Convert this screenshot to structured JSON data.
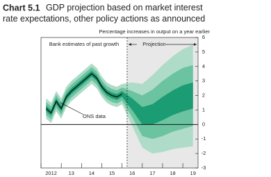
{
  "chart_data": {
    "type": "fan",
    "title_label": "Chart 5.1",
    "title": "GDP projection based on market interest rate expectations, other policy actions as announced",
    "subtitle": "Percentage increases in output on a year earlier",
    "past_label": "Bank estimates of past growth",
    "projection_label": "Projection",
    "projection_start": 2016.25,
    "xlim": [
      2012,
      2019.75
    ],
    "xticks": [
      {
        "value": 2012,
        "label": "2012"
      },
      {
        "value": 2013,
        "label": "13"
      },
      {
        "value": 2014,
        "label": "14"
      },
      {
        "value": 2015,
        "label": "15"
      },
      {
        "value": 2016,
        "label": "16"
      },
      {
        "value": 2017,
        "label": "17"
      },
      {
        "value": 2018,
        "label": "18"
      },
      {
        "value": 2019,
        "label": "19"
      }
    ],
    "ylim": [
      -3,
      6
    ],
    "yticks": [
      -3,
      -2,
      -1,
      0,
      1,
      2,
      3,
      4,
      5,
      6
    ],
    "band_x": [
      2012.25,
      2012.5,
      2012.75,
      2013,
      2013.25,
      2013.5,
      2013.75,
      2014,
      2014.25,
      2014.5,
      2014.75,
      2015,
      2015.25,
      2015.5,
      2015.75,
      2016,
      2016.5,
      2017,
      2017.5,
      2018,
      2018.5,
      2019,
      2019.5
    ],
    "bands": [
      {
        "color": "#aedcc8",
        "lower": [
          0.4,
          0.1,
          0.9,
          0.4,
          1.2,
          1.6,
          1.9,
          2.2,
          2.5,
          2.8,
          2.5,
          1.9,
          1.5,
          1.3,
          1.2,
          1.4,
          -0.1,
          -1.6,
          -2.0,
          -1.9,
          -1.7,
          -1.6,
          -1.5
        ],
        "upper": [
          1.8,
          1.5,
          2.3,
          1.8,
          2.6,
          3.0,
          3.3,
          3.6,
          3.9,
          4.2,
          3.9,
          3.3,
          2.9,
          2.7,
          2.6,
          2.8,
          2.9,
          2.8,
          3.4,
          4.1,
          4.7,
          5.2,
          5.5
        ]
      },
      {
        "color": "#6cc3a0",
        "lower": [
          0.65,
          0.35,
          1.15,
          0.65,
          1.45,
          1.85,
          2.15,
          2.45,
          2.75,
          3.05,
          2.75,
          2.15,
          1.75,
          1.55,
          1.45,
          1.65,
          0.5,
          -0.8,
          -1.0,
          -0.8,
          -0.5,
          -0.3,
          -0.1
        ],
        "upper": [
          1.55,
          1.25,
          2.05,
          1.55,
          2.35,
          2.75,
          3.05,
          3.35,
          3.65,
          3.95,
          3.65,
          3.05,
          2.65,
          2.45,
          2.35,
          2.55,
          2.3,
          2.0,
          2.4,
          3.0,
          3.5,
          3.9,
          4.1
        ]
      },
      {
        "color": "#1c9c73",
        "lower": [
          0.9,
          0.6,
          1.4,
          0.9,
          1.7,
          2.1,
          2.4,
          2.7,
          3.0,
          3.3,
          3.0,
          2.4,
          2.0,
          1.8,
          1.7,
          1.9,
          1.0,
          0.0,
          0.0,
          0.3,
          0.65,
          0.9,
          1.1
        ],
        "upper": [
          1.3,
          1.0,
          1.8,
          1.3,
          2.1,
          2.5,
          2.8,
          3.1,
          3.4,
          3.7,
          3.4,
          2.8,
          2.4,
          2.2,
          2.1,
          2.3,
          1.8,
          1.2,
          1.4,
          1.9,
          2.35,
          2.7,
          2.9
        ]
      }
    ],
    "series": [
      {
        "name": "ONS data",
        "color": "#111111",
        "x": [
          2012.25,
          2012.5,
          2012.75,
          2013,
          2013.25,
          2013.5,
          2013.75,
          2014,
          2014.25,
          2014.5,
          2014.75,
          2015,
          2015.25,
          2015.5,
          2015.75,
          2016
        ],
        "values": [
          1.1,
          0.8,
          1.6,
          1.1,
          1.9,
          2.3,
          2.6,
          2.9,
          3.2,
          3.5,
          3.2,
          2.6,
          2.2,
          2.0,
          1.9,
          2.1
        ]
      }
    ]
  }
}
